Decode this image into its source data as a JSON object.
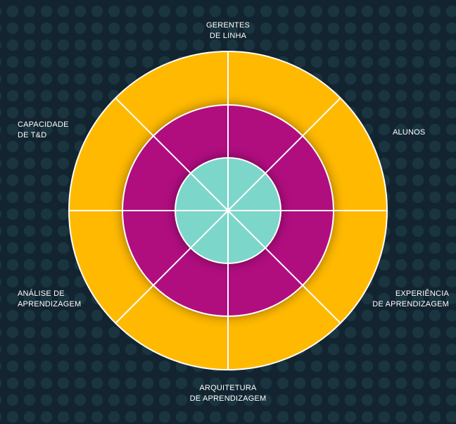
{
  "diagram": {
    "colors": {
      "background": "#11242f",
      "outer_ring": "#ffb900",
      "middle_ring": "#b0087f",
      "core": "#7dd6ca",
      "divider": "#ffffff"
    },
    "labels": {
      "gerentes": [
        "GERENTES",
        "DE LINHA"
      ],
      "alunos": [
        "ALUNOS"
      ],
      "experiencia": [
        "EXPERIÊNCIA",
        "DE APRENDIZAGEM"
      ],
      "arquitetura": [
        "ARQUITETURA",
        "DE APRENDIZAGEM"
      ],
      "analise": [
        "ANÁLISE DE",
        "APRENDIZAGEM"
      ],
      "capacidade": [
        "CAPACIDADE",
        "DE T&D"
      ]
    }
  }
}
